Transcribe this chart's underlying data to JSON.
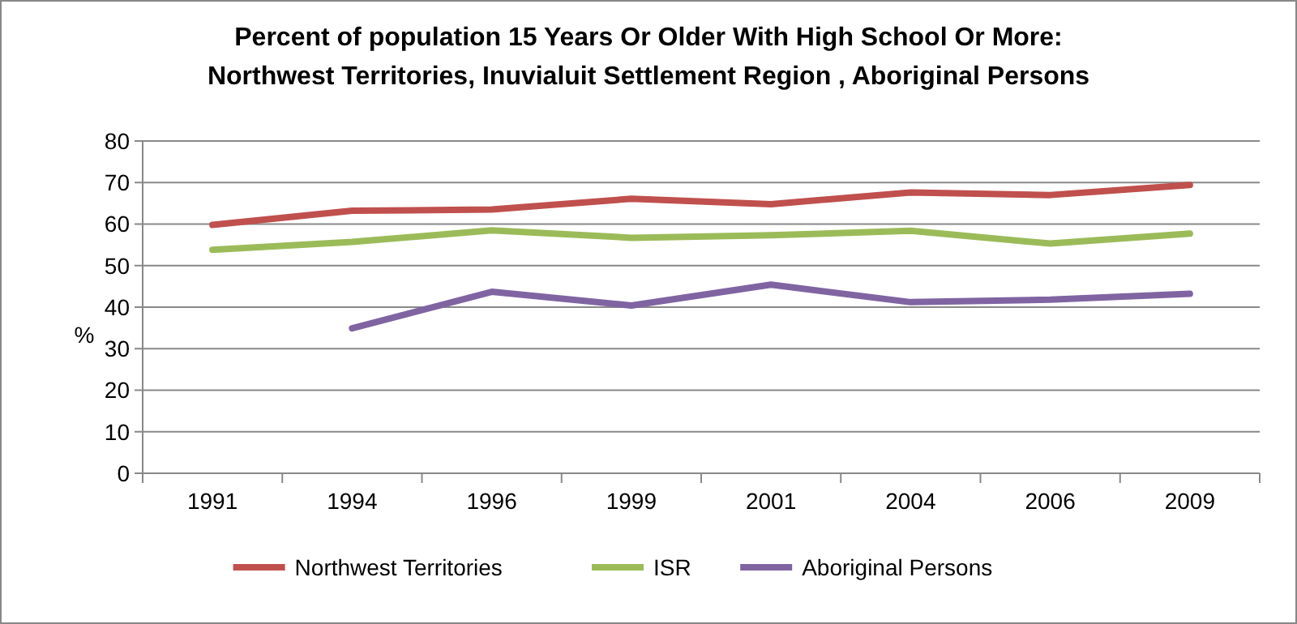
{
  "chart_data": {
    "type": "line",
    "title": "Percent of population 15 Years Or Older With High School Or More:\nNorthwest Territories, Inuvialuit Settlement Region , Aboriginal Persons",
    "ylabel": "%",
    "categories": [
      "1991",
      "1994",
      "1996",
      "1999",
      "2001",
      "2004",
      "2006",
      "2009"
    ],
    "series": [
      {
        "name": "Northwest Territories",
        "color": "#c0504d",
        "values": [
          59.8,
          63.2,
          63.5,
          66.1,
          64.8,
          67.6,
          67.0,
          69.4
        ]
      },
      {
        "name": "ISR",
        "color": "#9bbb59",
        "values": [
          53.8,
          55.7,
          58.5,
          56.7,
          57.3,
          58.4,
          55.3,
          57.7
        ]
      },
      {
        "name": "Aboriginal Persons",
        "color": "#8064a2",
        "values": [
          null,
          34.9,
          43.7,
          40.4,
          45.4,
          41.2,
          41.8,
          43.2
        ]
      }
    ],
    "ylim": [
      0,
      80
    ],
    "yticks": [
      0,
      10,
      20,
      30,
      40,
      50,
      60,
      70,
      80
    ],
    "grid": "y",
    "legend": "bottom",
    "marker": "none",
    "line_style": "solid"
  }
}
